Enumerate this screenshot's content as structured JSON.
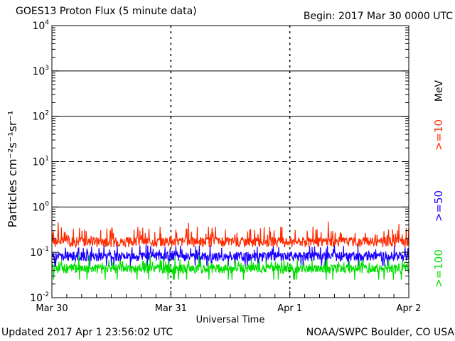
{
  "header": {
    "title": "GOES13 Proton Flux (5 minute data)",
    "begin": "Begin: 2017 Mar 30 0000 UTC"
  },
  "footer": {
    "updated": "Updated 2017 Apr  1 23:56:02 UTC",
    "credit": "NOAA/SWPC Boulder, CO USA"
  },
  "chart_data": {
    "type": "line",
    "title": "GOES13 Proton Flux (5 minute data)",
    "xlabel": "Universal Time",
    "ylabel": "Particles cm⁻²s⁻¹sr⁻¹",
    "yscale": "log",
    "ylim": [
      0.01,
      10000
    ],
    "xlim": [
      "2017-03-30T00:00",
      "2017-04-02T00:00"
    ],
    "x_ticks": [
      "Mar 30",
      "Mar 31",
      "Apr 1",
      "Apr 2"
    ],
    "y_ticks": [
      {
        "base": "10",
        "exp": "-2",
        "value": 0.01
      },
      {
        "base": "10",
        "exp": "-1",
        "value": 0.1
      },
      {
        "base": "10",
        "exp": "0",
        "value": 1
      },
      {
        "base": "10",
        "exp": "1",
        "value": 10
      },
      {
        "base": "10",
        "exp": "2",
        "value": 100
      },
      {
        "base": "10",
        "exp": "3",
        "value": 1000
      },
      {
        "base": "10",
        "exp": "4",
        "value": 10000
      }
    ],
    "threshold_lines": [
      {
        "value": 10,
        "style": "dashed"
      },
      {
        "value": 1,
        "style": "solid"
      },
      {
        "value": 100,
        "style": "solid"
      },
      {
        "value": 1000,
        "style": "solid"
      }
    ],
    "legend_unit": "MeV",
    "series": [
      {
        "name": ">=10",
        "color": "#ff2a00",
        "baseline": 0.16,
        "low": 0.13,
        "high": 0.5,
        "typical_peak": 0.3
      },
      {
        "name": ">=50",
        "color": "#1a00ff",
        "baseline": 0.075,
        "low": 0.05,
        "high": 0.16,
        "typical_peak": 0.12
      },
      {
        "name": ">=100",
        "color": "#00e000",
        "baseline": 0.04,
        "low": 0.025,
        "high": 0.09,
        "typical_peak": 0.06
      }
    ]
  }
}
